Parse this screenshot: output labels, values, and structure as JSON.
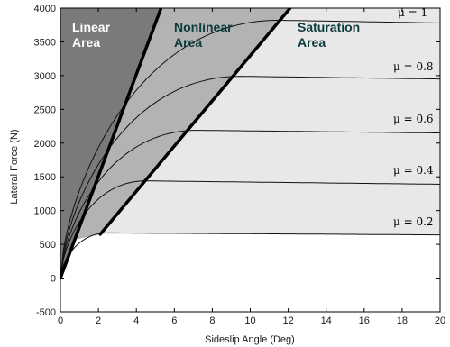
{
  "chart_data": {
    "type": "line",
    "title": "",
    "xlabel": "Sideslip Angle (Deg)",
    "ylabel": "Lateral Force (N)",
    "xlim": [
      0,
      20
    ],
    "ylim": [
      -500,
      4000
    ],
    "xticks": [
      0,
      2,
      4,
      6,
      8,
      10,
      12,
      14,
      16,
      18,
      20
    ],
    "yticks": [
      -500,
      0,
      500,
      1000,
      1500,
      2000,
      2500,
      3000,
      3500,
      4000
    ],
    "grid": false,
    "regions": [
      {
        "line1": "Linear",
        "line2": "Area",
        "color": "#7a7a7a",
        "text_color": "#ffffff"
      },
      {
        "line1": "Nonlinear",
        "line2": "Area",
        "color": "#b3b3b3",
        "text_color": "#0b3b3b"
      },
      {
        "line1": "Saturation",
        "line2": "Area",
        "color": "#e8e8e8",
        "text_color": "#0b3b3b"
      }
    ],
    "boundary_lines": [
      {
        "x": [
          0,
          5.3
        ],
        "y": [
          0,
          4000
        ]
      },
      {
        "x": [
          2.1,
          12.1
        ],
        "y": [
          650,
          4000
        ]
      }
    ],
    "series": [
      {
        "label": "μ = 1",
        "peak_x": 11.5,
        "peak_y": 3820,
        "end_y": 3780
      },
      {
        "label": "μ = 0.8",
        "peak_x": 9.5,
        "peak_y": 2990,
        "end_y": 2950
      },
      {
        "label": "μ = 0.6",
        "peak_x": 7.2,
        "peak_y": 2190,
        "end_y": 2150
      },
      {
        "label": "μ = 0.4",
        "peak_x": 4.5,
        "peak_y": 1440,
        "end_y": 1390
      },
      {
        "label": "μ = 0.2",
        "peak_x": 2.5,
        "peak_y": 670,
        "end_y": 640
      }
    ]
  }
}
